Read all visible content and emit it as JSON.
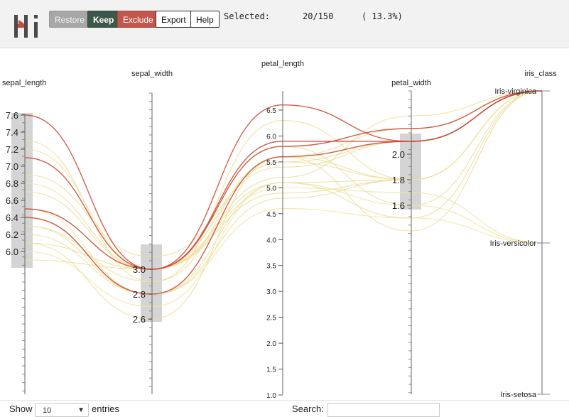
{
  "toolbar": {
    "restore_label": "Restore",
    "keep_label": "Keep",
    "exclude_label": "Exclude",
    "export_label": "Export",
    "help_label": "Help"
  },
  "status": {
    "selected_label": "Selected:",
    "count": "20/150",
    "percent": "( 13.3%)"
  },
  "chart_data": {
    "type": "parallel-coordinates",
    "axes": [
      {
        "name": "sepal_length",
        "ticks": [
          "6.0",
          "6.2",
          "6.4",
          "6.6",
          "6.8",
          "7.0",
          "7.2",
          "7.4",
          "7.6"
        ],
        "tick_values": [
          6.0,
          6.2,
          6.4,
          6.6,
          6.8,
          7.0,
          7.2,
          7.4,
          7.6
        ],
        "range": [
          4.3,
          7.7
        ],
        "brush": [
          5.9,
          7.7
        ]
      },
      {
        "name": "sepal_width",
        "ticks": [
          "2.6",
          "2.8",
          "3.0"
        ],
        "tick_values": [
          2.6,
          2.8,
          3.0
        ],
        "range": [
          2.0,
          4.4
        ],
        "brush": [
          2.55,
          3.07
        ]
      },
      {
        "name": "petal_length",
        "ticks": [
          "1.0",
          "1.5",
          "2.0",
          "2.5",
          "3.0",
          "3.5",
          "4.0",
          "4.5",
          "5.0",
          "5.5",
          "6.0",
          "6.5"
        ],
        "tick_values": [
          1.0,
          1.5,
          2.0,
          2.5,
          3.0,
          3.5,
          4.0,
          4.5,
          5.0,
          5.5,
          6.0,
          6.5
        ],
        "range": [
          1.0,
          6.9
        ]
      },
      {
        "name": "petal_width",
        "ticks": [
          "1.6",
          "1.8",
          "2.0"
        ],
        "tick_values": [
          1.6,
          1.8,
          2.0
        ],
        "range": [
          0.1,
          2.5
        ],
        "brush": [
          1.55,
          2.12
        ]
      },
      {
        "name": "iris_class",
        "categories": [
          "Iris-setosa",
          "Iris-versicolor",
          "Iris-virginica"
        ]
      }
    ],
    "records": [
      {
        "sepal_length": 7.6,
        "sepal_width": 3.0,
        "petal_length": 6.6,
        "petal_width": 2.1,
        "iris_class": "Iris-virginica",
        "highlight": true
      },
      {
        "sepal_length": 7.3,
        "sepal_width": 2.9,
        "petal_length": 6.3,
        "petal_width": 1.8,
        "iris_class": "Iris-virginica"
      },
      {
        "sepal_length": 7.2,
        "sepal_width": 3.0,
        "petal_length": 5.8,
        "petal_width": 1.6,
        "iris_class": "Iris-virginica"
      },
      {
        "sepal_length": 7.1,
        "sepal_width": 3.0,
        "petal_length": 5.9,
        "petal_width": 2.1,
        "iris_class": "Iris-virginica",
        "highlight": true
      },
      {
        "sepal_length": 6.9,
        "sepal_width": 3.1,
        "petal_length": 5.4,
        "petal_width": 2.1,
        "iris_class": "Iris-virginica"
      },
      {
        "sepal_length": 6.8,
        "sepal_width": 3.0,
        "petal_length": 5.5,
        "petal_width": 2.1,
        "iris_class": "Iris-virginica"
      },
      {
        "sepal_length": 6.7,
        "sepal_width": 3.0,
        "petal_length": 5.2,
        "petal_width": 2.3,
        "iris_class": "Iris-virginica"
      },
      {
        "sepal_length": 6.7,
        "sepal_width": 3.0,
        "petal_length": 5.0,
        "petal_width": 1.7,
        "iris_class": "Iris-versicolor"
      },
      {
        "sepal_length": 6.5,
        "sepal_width": 3.0,
        "petal_length": 5.8,
        "petal_width": 2.2,
        "iris_class": "Iris-virginica",
        "highlight": true
      },
      {
        "sepal_length": 6.5,
        "sepal_width": 3.0,
        "petal_length": 5.5,
        "petal_width": 1.8,
        "iris_class": "Iris-virginica"
      },
      {
        "sepal_length": 6.5,
        "sepal_width": 2.8,
        "petal_length": 4.6,
        "petal_width": 1.5,
        "iris_class": "Iris-versicolor"
      },
      {
        "sepal_length": 6.4,
        "sepal_width": 2.8,
        "petal_length": 5.6,
        "petal_width": 2.1,
        "iris_class": "Iris-virginica",
        "highlight": true
      },
      {
        "sepal_length": 6.4,
        "sepal_width": 2.8,
        "petal_length": 5.6,
        "petal_width": 2.2,
        "iris_class": "Iris-virginica"
      },
      {
        "sepal_length": 6.3,
        "sepal_width": 2.9,
        "petal_length": 5.6,
        "petal_width": 1.8,
        "iris_class": "Iris-virginica"
      },
      {
        "sepal_length": 6.3,
        "sepal_width": 2.8,
        "petal_length": 5.1,
        "petal_width": 1.5,
        "iris_class": "Iris-virginica"
      },
      {
        "sepal_length": 6.2,
        "sepal_width": 2.8,
        "petal_length": 4.8,
        "petal_width": 1.8,
        "iris_class": "Iris-virginica"
      },
      {
        "sepal_length": 6.1,
        "sepal_width": 2.6,
        "petal_length": 5.6,
        "petal_width": 1.4,
        "iris_class": "Iris-virginica"
      },
      {
        "sepal_length": 6.1,
        "sepal_width": 3.0,
        "petal_length": 4.9,
        "petal_width": 1.8,
        "iris_class": "Iris-virginica"
      },
      {
        "sepal_length": 6.0,
        "sepal_width": 2.7,
        "petal_length": 5.1,
        "petal_width": 1.6,
        "iris_class": "Iris-versicolor"
      },
      {
        "sepal_length": 5.9,
        "sepal_width": 3.0,
        "petal_length": 5.1,
        "petal_width": 1.8,
        "iris_class": "Iris-virginica"
      }
    ]
  },
  "footer": {
    "show_label": "Show",
    "page_length": "10",
    "entries_label": "entries",
    "search_label": "Search:"
  },
  "colors": {
    "line_primary": "#ece0a0",
    "line_highlight": "#c9452f",
    "brush_fill": "#cfcfcf"
  }
}
